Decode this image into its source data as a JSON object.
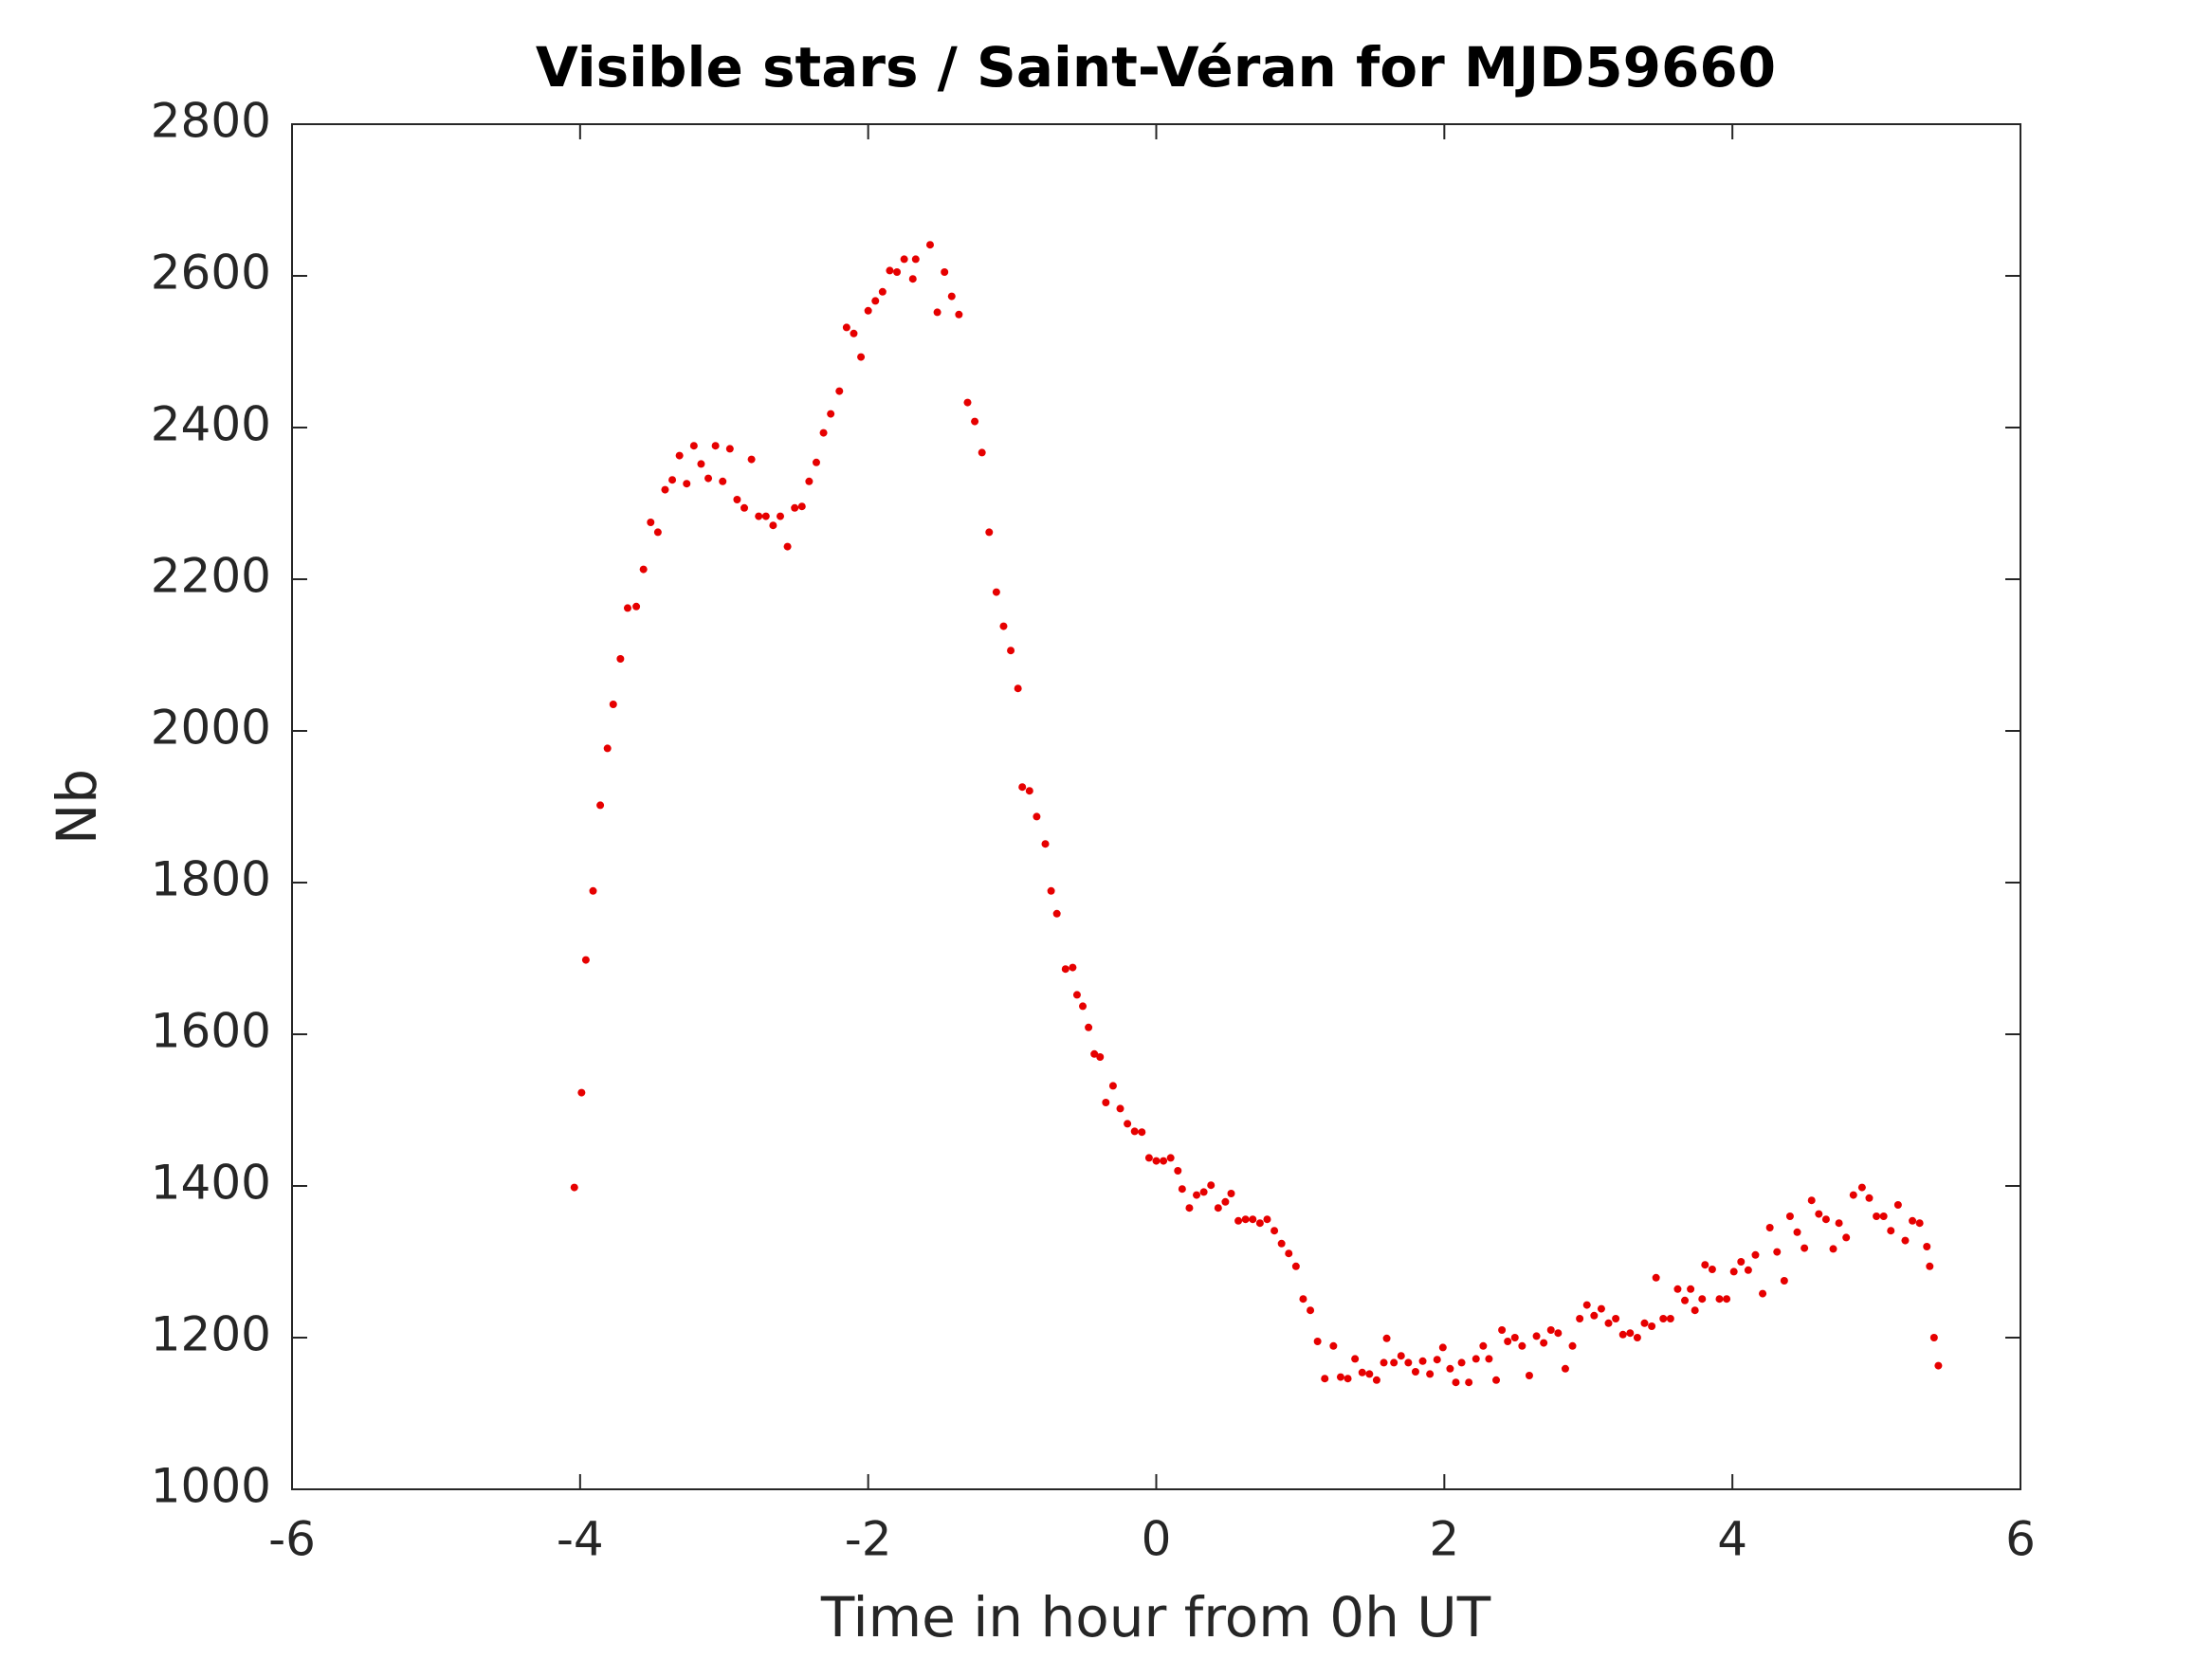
{
  "chart_data": {
    "type": "scatter",
    "title": "Visible stars / Saint-Véran for MJD59660",
    "xlabel": "Time in hour from 0h UT",
    "ylabel": "Nb",
    "color": "#e60000",
    "xlim": [
      -6,
      6
    ],
    "xticks": [
      -6,
      -4,
      -2,
      0,
      2,
      4,
      6
    ],
    "ylim": [
      1000,
      2800
    ],
    "yticks": [
      1000,
      1200,
      1400,
      1600,
      1800,
      2000,
      2200,
      2400,
      2600,
      2800
    ],
    "x": [
      -4.04,
      -3.99,
      -3.96,
      -3.91,
      -3.86,
      -3.81,
      -3.77,
      -3.72,
      -3.67,
      -3.61,
      -3.56,
      -3.51,
      -3.46,
      -3.41,
      -3.36,
      -3.31,
      -3.26,
      -3.21,
      -3.16,
      -3.11,
      -3.06,
      -3.01,
      -2.96,
      -2.91,
      -2.86,
      -2.81,
      -2.76,
      -2.71,
      -2.66,
      -2.61,
      -2.56,
      -2.51,
      -2.46,
      -2.41,
      -2.36,
      -2.31,
      -2.26,
      -2.2,
      -2.15,
      -2.1,
      -2.05,
      -2.0,
      -1.95,
      -1.9,
      -1.85,
      -1.8,
      -1.75,
      -1.69,
      -1.67,
      -1.57,
      -1.52,
      -1.47,
      -1.42,
      -1.37,
      -1.31,
      -1.26,
      -1.21,
      -1.16,
      -1.11,
      -1.06,
      -1.01,
      -0.96,
      -0.93,
      -0.88,
      -0.83,
      -0.77,
      -0.73,
      -0.69,
      -0.63,
      -0.58,
      -0.55,
      -0.51,
      -0.47,
      -0.43,
      -0.39,
      -0.35,
      -0.3,
      -0.25,
      -0.2,
      -0.15,
      -0.1,
      -0.05,
      0.0,
      0.05,
      0.1,
      0.15,
      0.18,
      0.23,
      0.28,
      0.33,
      0.38,
      0.43,
      0.48,
      0.52,
      0.57,
      0.62,
      0.67,
      0.72,
      0.77,
      0.82,
      0.87,
      0.92,
      0.97,
      1.02,
      1.07,
      1.12,
      1.17,
      1.23,
      1.28,
      1.33,
      1.38,
      1.43,
      1.48,
      1.53,
      1.58,
      1.6,
      1.65,
      1.7,
      1.75,
      1.8,
      1.85,
      1.9,
      1.95,
      1.99,
      2.04,
      2.08,
      2.12,
      2.17,
      2.22,
      2.27,
      2.31,
      2.36,
      2.4,
      2.44,
      2.49,
      2.54,
      2.59,
      2.64,
      2.69,
      2.74,
      2.79,
      2.84,
      2.89,
      2.94,
      2.99,
      3.04,
      3.09,
      3.14,
      3.19,
      3.24,
      3.29,
      3.34,
      3.39,
      3.44,
      3.47,
      3.52,
      3.57,
      3.62,
      3.67,
      3.71,
      3.74,
      3.79,
      3.81,
      3.86,
      3.91,
      3.96,
      4.01,
      4.06,
      4.11,
      4.16,
      4.21,
      4.26,
      4.31,
      4.36,
      4.4,
      4.45,
      4.5,
      4.55,
      4.6,
      4.65,
      4.7,
      4.74,
      4.79,
      4.84,
      4.9,
      4.95,
      5.0,
      5.05,
      5.1,
      5.15,
      5.2,
      5.25,
      5.3,
      5.35,
      5.37,
      5.4,
      5.43
    ],
    "y": [
      1398,
      1523,
      1698,
      1789,
      1902,
      1977,
      2035,
      2095,
      2162,
      2164,
      2213,
      2275,
      2262,
      2318,
      2331,
      2363,
      2326,
      2376,
      2352,
      2333,
      2376,
      2329,
      2372,
      2305,
      2294,
      2358,
      2283,
      2283,
      2271,
      2283,
      2243,
      2294,
      2296,
      2329,
      2354,
      2393,
      2418,
      2448,
      2532,
      2524,
      2493,
      2554,
      2567,
      2579,
      2607,
      2605,
      2622,
      2596,
      2622,
      2641,
      2552,
      2605,
      2573,
      2549,
      2433,
      2408,
      2367,
      2262,
      2183,
      2138,
      2106,
      2056,
      1926,
      1921,
      1887,
      1851,
      1789,
      1759,
      1686,
      1688,
      1652,
      1637,
      1609,
      1574,
      1570,
      1510,
      1532,
      1502,
      1482,
      1472,
      1471,
      1437,
      1433,
      1433,
      1437,
      1420,
      1396,
      1371,
      1388,
      1392,
      1401,
      1371,
      1379,
      1390,
      1354,
      1356,
      1356,
      1351,
      1356,
      1341,
      1324,
      1311,
      1294,
      1251,
      1236,
      1195,
      1146,
      1189,
      1148,
      1146,
      1172,
      1154,
      1152,
      1144,
      1167,
      1199,
      1167,
      1176,
      1167,
      1155,
      1169,
      1152,
      1171,
      1187,
      1159,
      1141,
      1167,
      1141,
      1172,
      1189,
      1172,
      1144,
      1210,
      1195,
      1200,
      1189,
      1150,
      1202,
      1193,
      1210,
      1206,
      1159,
      1189,
      1225,
      1243,
      1229,
      1238,
      1219,
      1225,
      1204,
      1206,
      1200,
      1219,
      1215,
      1279,
      1225,
      1225,
      1264,
      1249,
      1264,
      1236,
      1251,
      1296,
      1290,
      1251,
      1251,
      1287,
      1300,
      1289,
      1309,
      1258,
      1345,
      1313,
      1275,
      1360,
      1339,
      1318,
      1381,
      1363,
      1356,
      1317,
      1351,
      1332,
      1388,
      1398,
      1384,
      1360,
      1360,
      1341,
      1375,
      1328,
      1354,
      1351,
      1320,
      1294,
      1200,
      1163
    ]
  }
}
